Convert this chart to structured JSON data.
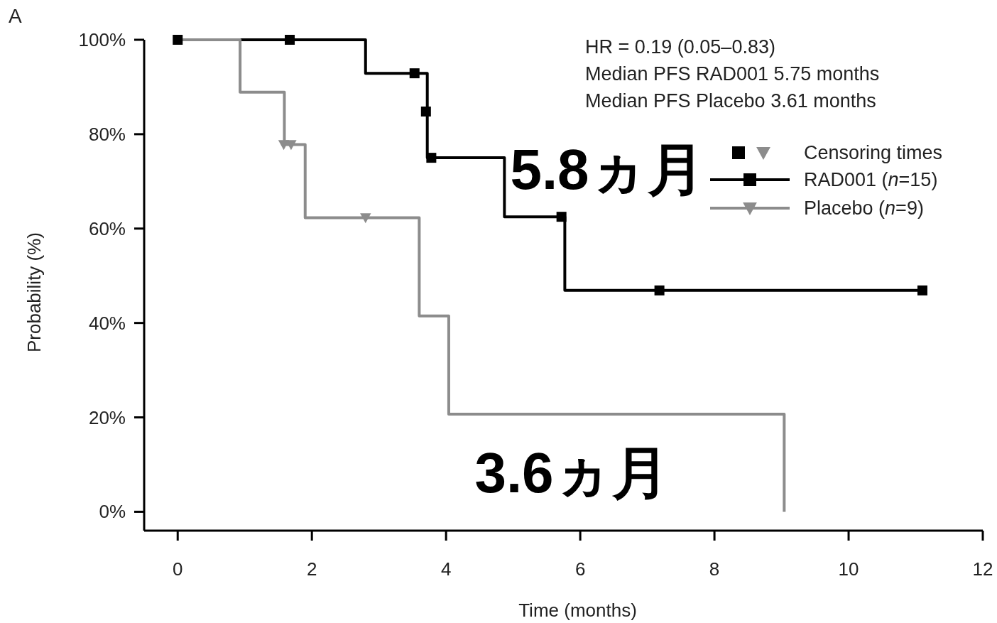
{
  "chart_data": {
    "type": "step",
    "xlabel": "Time (months)",
    "ylabel": "Probability (%)",
    "xlim": [
      -0.5,
      12
    ],
    "ylim": [
      -4,
      100
    ],
    "xticks": [
      0,
      2,
      4,
      6,
      8,
      10,
      12
    ],
    "yticks": [
      {
        "value": 0,
        "label": "0%"
      },
      {
        "value": 20,
        "label": "20%"
      },
      {
        "value": 40,
        "label": "40%"
      },
      {
        "value": 60,
        "label": "60%"
      },
      {
        "value": 80,
        "label": "80%"
      },
      {
        "value": 100,
        "label": "100%"
      }
    ],
    "legend": "top right",
    "legend_title": "Censoring times",
    "grid": false,
    "series": [
      {
        "name": "RAD001 (*n*=15)",
        "color": "#000000",
        "x": [
          0,
          2.8,
          3.72,
          4.87,
          5.77,
          11.1
        ],
        "values": [
          100,
          92.9,
          75,
          62.5,
          46.9,
          46.9
        ]
      },
      {
        "name": "Placebo (*n*=9)",
        "color": "#8c8c8c",
        "x": [
          0,
          0.93,
          1.59,
          1.9,
          3.6,
          4.04,
          9.04,
          9.04
        ],
        "values": [
          100,
          88.9,
          77.8,
          62.3,
          41.5,
          20.7,
          20.7,
          0
        ]
      },
      {
        "type": "scatter",
        "color": "#000000",
        "marker": "square",
        "x": [
          0,
          1.67,
          3.53,
          3.7,
          3.78,
          5.72,
          7.18,
          11.1
        ],
        "values": [
          100,
          100,
          92.9,
          84.8,
          75,
          62.5,
          46.9,
          46.9
        ]
      },
      {
        "type": "scatter",
        "color": "#8c8c8c",
        "marker": "triangle",
        "x": [
          1.58,
          1.69,
          2.8
        ],
        "values": [
          77.8,
          77.8,
          62.3
        ]
      }
    ],
    "annotations": [
      "A",
      "HR = 0.19 (0.05–0.83)",
      "Median PFS RAD001 5.75 months",
      "Median PFS Placebo 3.61 months",
      "5.8ヵ月",
      "3.6ヵ月"
    ]
  }
}
